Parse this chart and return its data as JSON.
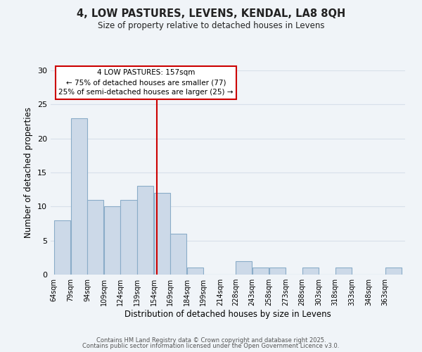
{
  "title": "4, LOW PASTURES, LEVENS, KENDAL, LA8 8QH",
  "subtitle": "Size of property relative to detached houses in Levens",
  "xlabel": "Distribution of detached houses by size in Levens",
  "ylabel": "Number of detached properties",
  "bin_labels": [
    "64sqm",
    "79sqm",
    "94sqm",
    "109sqm",
    "124sqm",
    "139sqm",
    "154sqm",
    "169sqm",
    "184sqm",
    "199sqm",
    "214sqm",
    "228sqm",
    "243sqm",
    "258sqm",
    "273sqm",
    "288sqm",
    "303sqm",
    "318sqm",
    "333sqm",
    "348sqm",
    "363sqm"
  ],
  "bin_edges": [
    64,
    79,
    94,
    109,
    124,
    139,
    154,
    169,
    184,
    199,
    214,
    228,
    243,
    258,
    273,
    288,
    303,
    318,
    333,
    348,
    363,
    378
  ],
  "values": [
    8,
    23,
    11,
    10,
    11,
    13,
    12,
    6,
    1,
    0,
    0,
    2,
    1,
    1,
    0,
    1,
    0,
    1,
    0,
    0,
    1
  ],
  "bar_color": "#ccd9e8",
  "bar_edge_color": "#8aacc8",
  "red_line_x": 157,
  "annotation_title": "4 LOW PASTURES: 157sqm",
  "annotation_line1": "← 75% of detached houses are smaller (77)",
  "annotation_line2": "25% of semi-detached houses are larger (25) →",
  "annotation_box_color": "#ffffff",
  "annotation_box_edge": "#cc0000",
  "red_line_color": "#cc0000",
  "ylim": [
    0,
    30
  ],
  "yticks": [
    0,
    5,
    10,
    15,
    20,
    25,
    30
  ],
  "footer1": "Contains HM Land Registry data © Crown copyright and database right 2025.",
  "footer2": "Contains public sector information licensed under the Open Government Licence v3.0.",
  "bg_color": "#f0f4f8",
  "grid_color": "#d8e0ea"
}
